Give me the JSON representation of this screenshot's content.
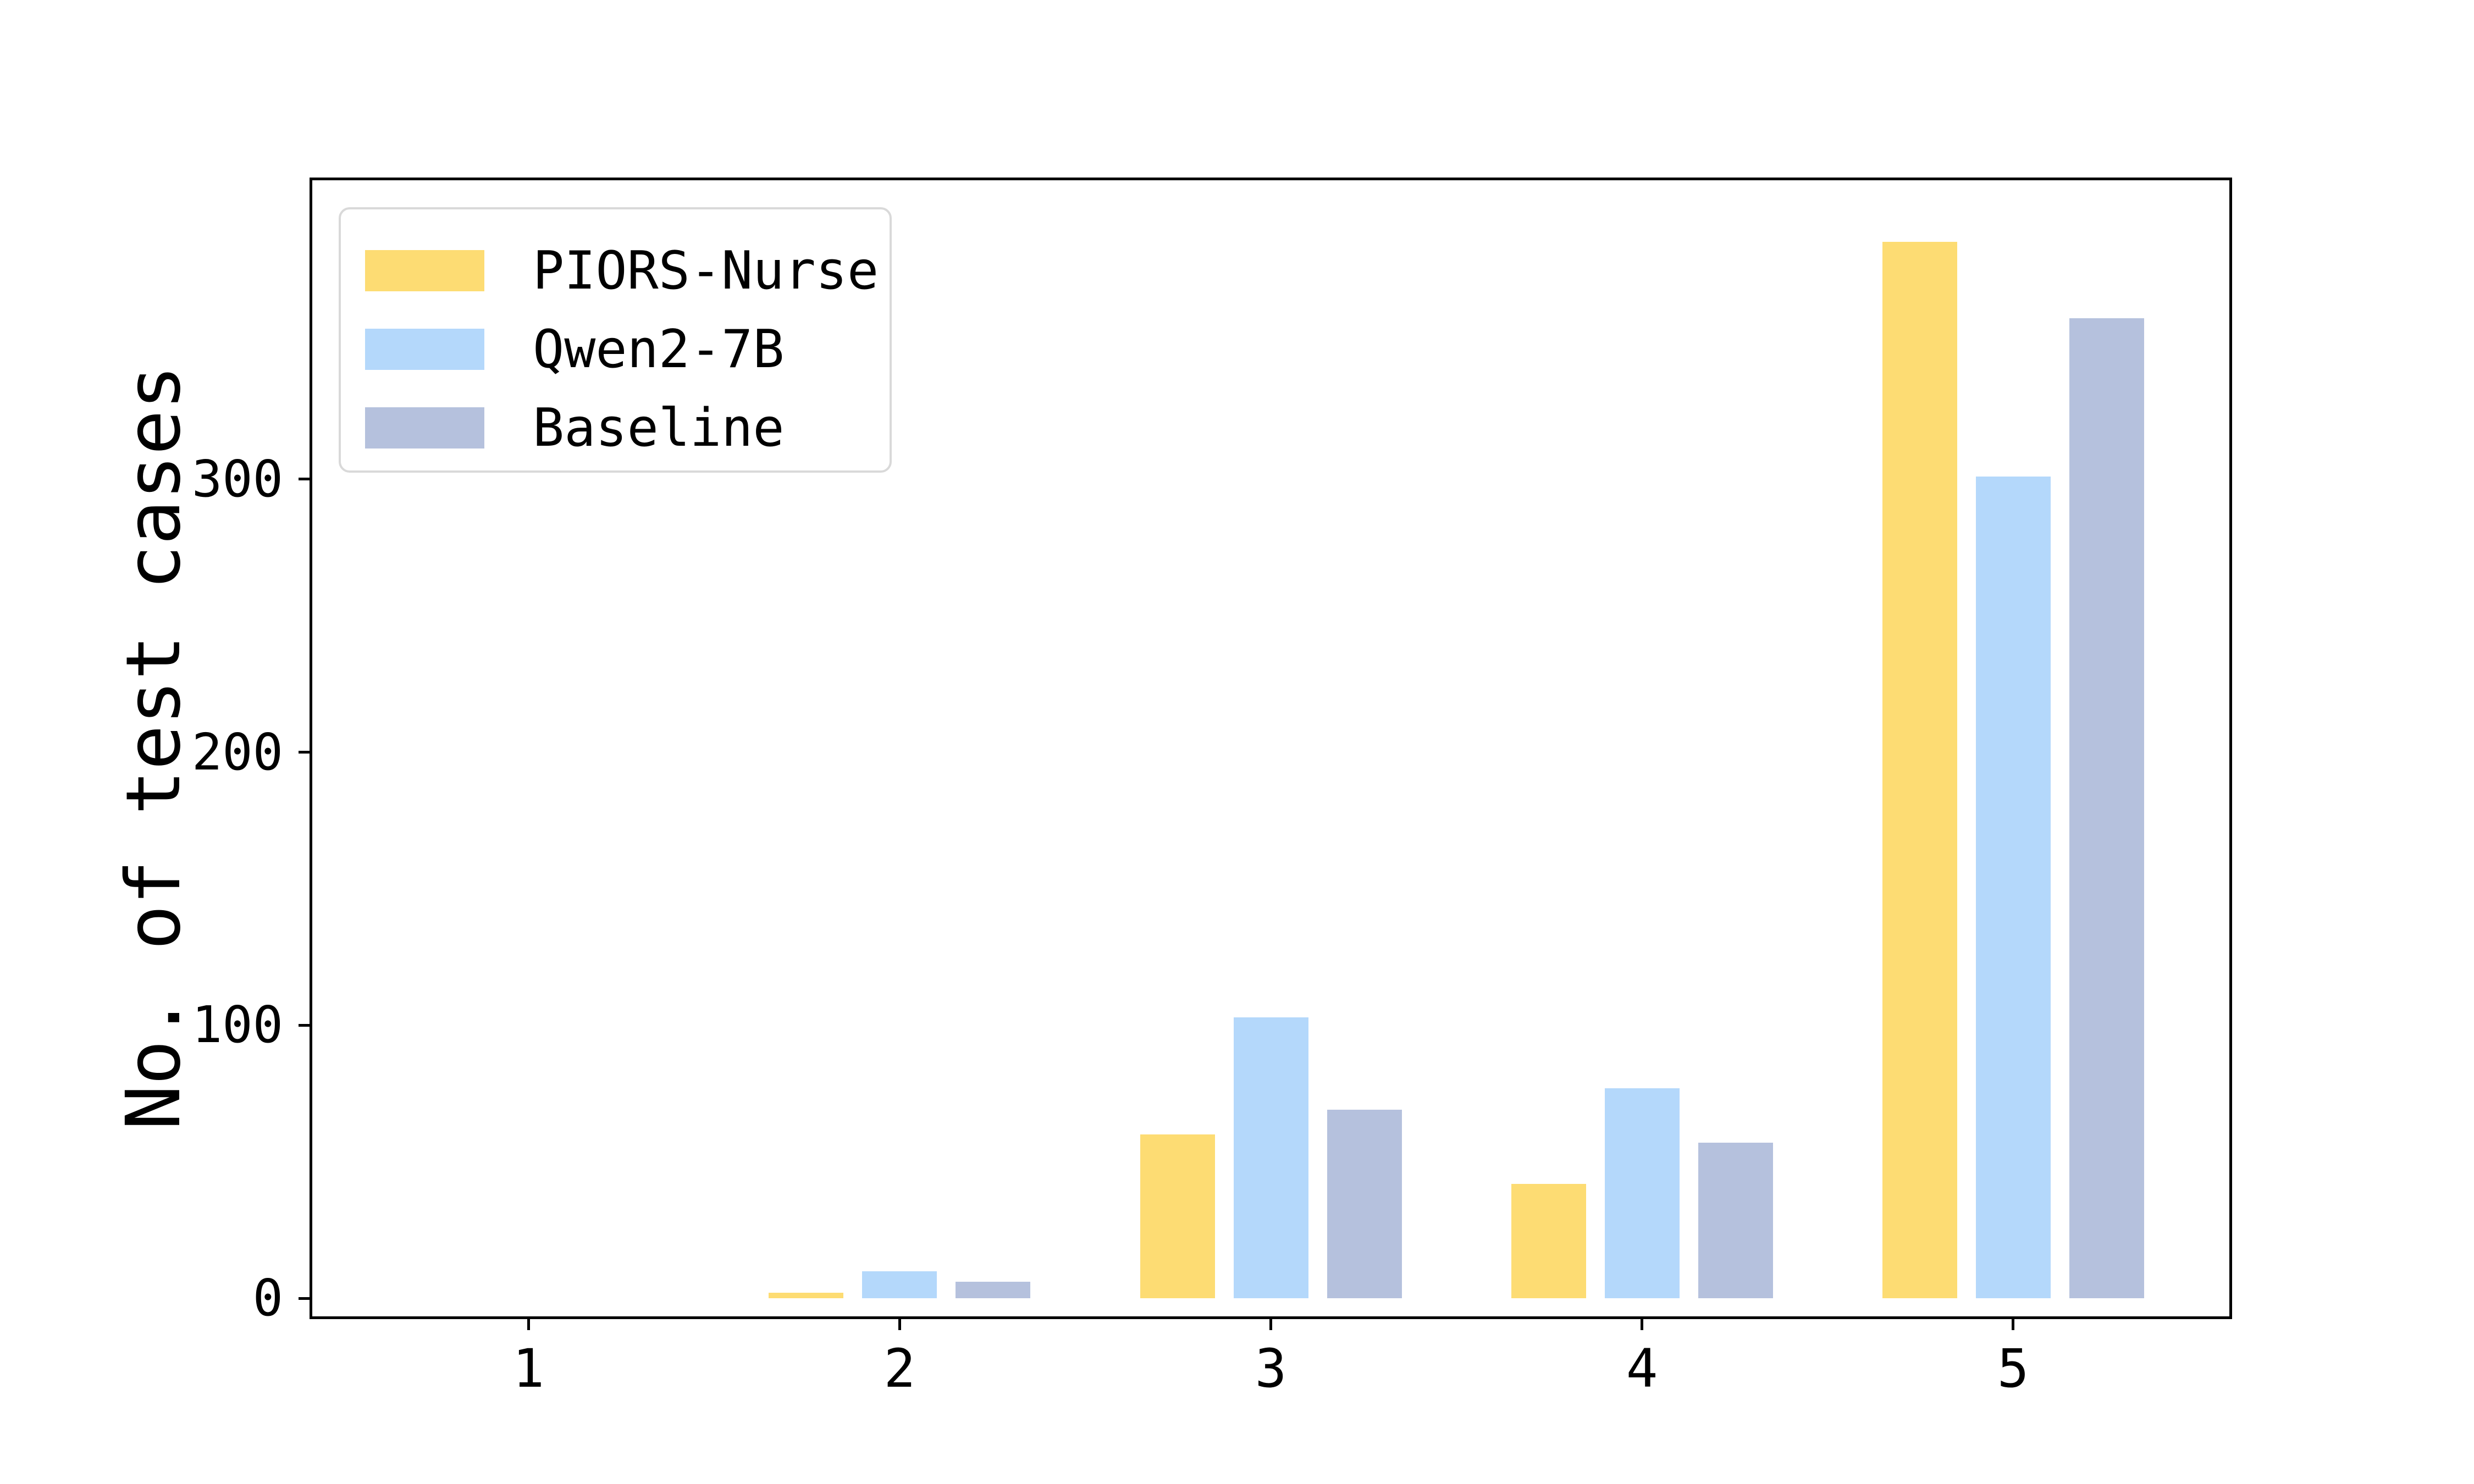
{
  "figure": {
    "background": "#ffffff"
  },
  "chart_data": {
    "type": "bar",
    "title": "",
    "xlabel": "",
    "ylabel": "No. of test cases",
    "categories": [
      "1",
      "2",
      "3",
      "4",
      "5"
    ],
    "series": [
      {
        "name": "PIORS-Nurse",
        "color": "#FDDC73",
        "values": [
          0,
          2,
          60,
          42,
          387
        ]
      },
      {
        "name": "Qwen2-7B",
        "color": "#B4D8FB",
        "values": [
          0,
          10,
          103,
          77,
          301
        ]
      },
      {
        "name": "Baseline",
        "color": "#B5C1DD",
        "values": [
          0,
          6,
          69,
          57,
          359
        ]
      }
    ],
    "yticks": [
      0,
      100,
      200,
      300
    ],
    "ylim": [
      -7.6,
      410.5
    ],
    "xlim": [
      0.41,
      5.59
    ],
    "grid": false,
    "legend_position": "upper-left",
    "legend_border_color": "#D9D9D9",
    "axis_color": "#000000"
  }
}
